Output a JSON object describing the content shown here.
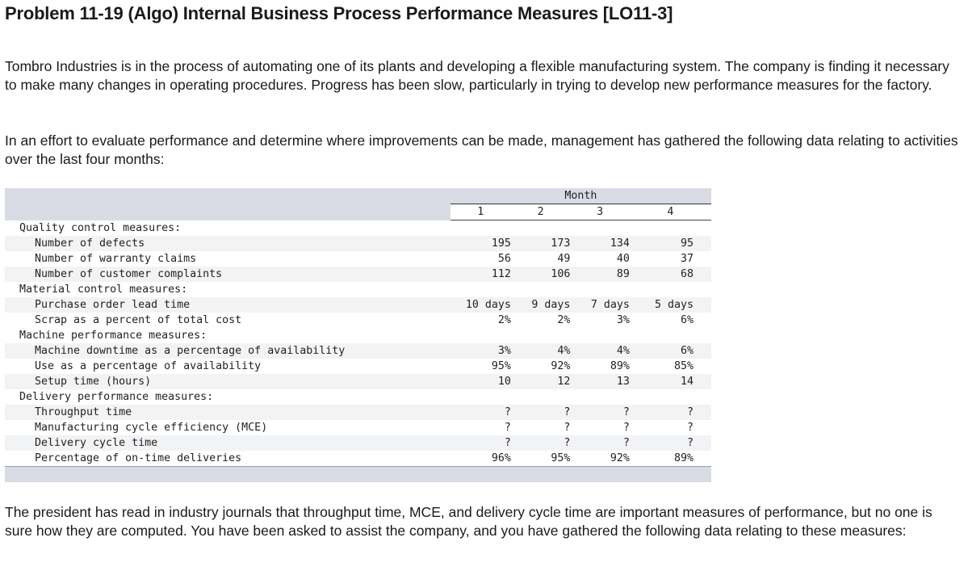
{
  "title": "Problem 11-19 (Algo) Internal Business Process Performance Measures [LO11-3]",
  "paragraphs": [
    "Tombro Industries is in the process of automating one of its plants and developing a flexible manufacturing system. The company is finding it necessary to make many changes in operating procedures. Progress has been slow, particularly in trying to develop new performance measures for the factory.",
    "In an effort to evaluate performance and determine where improvements can be made, management has gathered the following data relating to activities over the last four months:",
    "The president has read in industry journals that throughput time, MCE, and delivery cycle time are important measures of performance, but no one is sure how they are computed. You have been asked to assist the company, and you have gathered the following data relating to these measures:"
  ],
  "table": {
    "month_header": "Month",
    "columns": [
      "1",
      "2",
      "3",
      "4"
    ],
    "rows": [
      {
        "type": "category",
        "label": "Quality control measures:"
      },
      {
        "type": "item",
        "label": "Number of defects",
        "values": [
          "195",
          "173",
          "134",
          "95"
        ]
      },
      {
        "type": "item",
        "label": "Number of warranty claims",
        "values": [
          "56",
          "49",
          "40",
          "37"
        ]
      },
      {
        "type": "item",
        "label": "Number of customer complaints",
        "values": [
          "112",
          "106",
          "89",
          "68"
        ]
      },
      {
        "type": "category",
        "label": "Material control measures:"
      },
      {
        "type": "item",
        "label": "Purchase order lead time",
        "values": [
          "10 days",
          "9 days",
          "7 days",
          "5 days"
        ]
      },
      {
        "type": "item",
        "label": "Scrap as a percent of total cost",
        "values": [
          "2%",
          "2%",
          "3%",
          "6%"
        ]
      },
      {
        "type": "category",
        "label": "Machine performance measures:"
      },
      {
        "type": "item",
        "label": "Machine downtime as a percentage of availability",
        "values": [
          "3%",
          "4%",
          "4%",
          "6%"
        ]
      },
      {
        "type": "item",
        "label": "Use as a percentage of availability",
        "values": [
          "95%",
          "92%",
          "89%",
          "85%"
        ]
      },
      {
        "type": "item",
        "label": "Setup time (hours)",
        "values": [
          "10",
          "12",
          "13",
          "14"
        ]
      },
      {
        "type": "category",
        "label": "Delivery performance measures:"
      },
      {
        "type": "item",
        "label": "Throughput time",
        "values": [
          "?",
          "?",
          "?",
          "?"
        ]
      },
      {
        "type": "item",
        "label": "Manufacturing cycle efficiency (MCE)",
        "values": [
          "?",
          "?",
          "?",
          "?"
        ]
      },
      {
        "type": "item",
        "label": "Delivery cycle time",
        "values": [
          "?",
          "?",
          "?",
          "?"
        ]
      },
      {
        "type": "item",
        "label": "Percentage of on-time deliveries",
        "values": [
          "96%",
          "95%",
          "92%",
          "89%"
        ]
      }
    ]
  }
}
